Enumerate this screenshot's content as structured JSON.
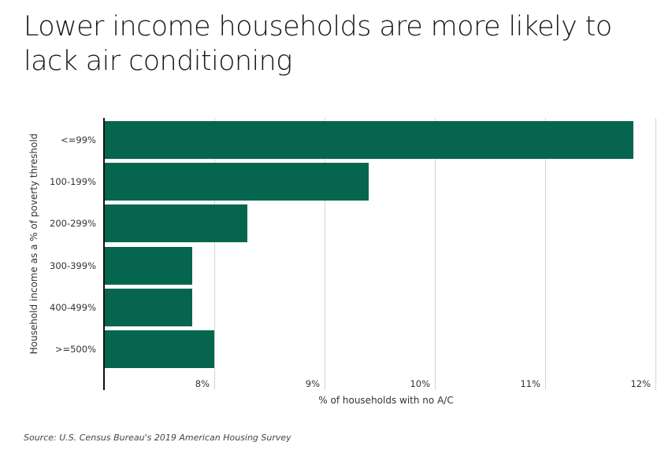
{
  "title": "Lower income households are more likely to lack air conditioning",
  "source": "Source:  U.S. Census Bureau's 2019 American Housing Survey",
  "colors": {
    "bar": "#06654e",
    "axis": "#111111",
    "grid": "#d4d4d4"
  },
  "chart_data": {
    "type": "bar",
    "orientation": "horizontal",
    "title": "Lower income households are more likely to lack air conditioning",
    "xlabel": "% of households with no A/C",
    "ylabel": "Household income as a % of poverty threshold",
    "categories": [
      "<=99%",
      "100-199%",
      "200-299%",
      "300-399%",
      "400-499%",
      ">=500%"
    ],
    "values": [
      11.8,
      9.4,
      8.3,
      7.8,
      7.8,
      8.0
    ],
    "unit": "%",
    "xlim": [
      7,
      12
    ],
    "xticks": [
      8,
      9,
      10,
      11,
      12
    ],
    "xtick_labels": [
      "8%",
      "9%",
      "10%",
      "11%",
      "12%"
    ],
    "grid": "vertical",
    "legend": null,
    "source": "Source:  U.S. Census Bureau's 2019 American Housing Survey"
  }
}
